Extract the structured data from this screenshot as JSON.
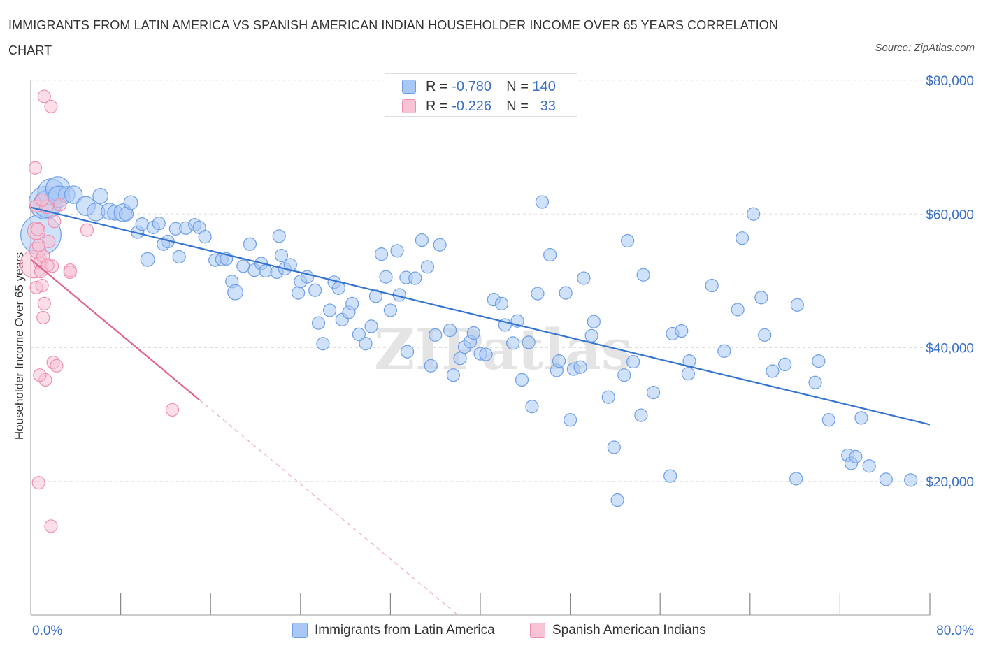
{
  "title": "IMMIGRANTS FROM LATIN AMERICA VS SPANISH AMERICAN INDIAN HOUSEHOLDER INCOME OVER 65 YEARS CORRELATION CHART",
  "source": "Source: ZipAtlas.com",
  "watermark": "ZIPatlas",
  "legend": {
    "rows": [
      {
        "r_label": "R =",
        "r_value": "-0.780",
        "n_label": "N =",
        "n_value": "140"
      },
      {
        "r_label": "R =",
        "r_value": "-0.226",
        "n_label": "N =",
        "n_value": "33"
      }
    ]
  },
  "colors": {
    "blue": "#6d9ee6",
    "blue_fill": "#aac8f5",
    "blue_line": "#3575d0",
    "pink": "#ee8fb0",
    "pink_fill": "#f8c3d5",
    "pink_line": "#e0608f",
    "tick_label": "#3a6fc6"
  },
  "chart_data": {
    "type": "scatter",
    "ylabel": "Householder Income Over 65 years",
    "xlabel": "",
    "xlim": [
      0,
      80
    ],
    "ylim": [
      0,
      80000
    ],
    "x_tick_labels": [
      "0.0%",
      "80.0%"
    ],
    "y_ticks": [
      20000,
      40000,
      60000,
      80000
    ],
    "y_tick_labels": [
      "$20,000",
      "$40,000",
      "$60,000",
      "$80,000"
    ],
    "grid": true,
    "legend_position": "top-center",
    "series": [
      {
        "name": "Immigrants from Latin America",
        "color": "#6d9ee6",
        "trend": {
          "x1": 0,
          "y1": 61000,
          "x2": 80,
          "y2": 28500
        },
        "points": [
          [
            0.9,
            56900,
            3.2
          ],
          [
            1.3,
            61700,
            2.6
          ],
          [
            1.5,
            61500,
            2.2
          ],
          [
            1.8,
            63300,
            2.1
          ],
          [
            2.4,
            63800,
            1.9
          ],
          [
            2.5,
            62600,
            1.7
          ],
          [
            3.2,
            62900,
            1.3
          ],
          [
            3.8,
            62900,
            1.4
          ],
          [
            4.9,
            61200,
            1.5
          ],
          [
            6.2,
            62700,
            1.2
          ],
          [
            5.8,
            60300,
            1.4
          ],
          [
            7.0,
            60400,
            1.3
          ],
          [
            7.5,
            60200,
            1.2
          ],
          [
            8.2,
            60200,
            1.4
          ],
          [
            8.5,
            60000,
            1.1
          ],
          [
            8.9,
            61700,
            1.1
          ],
          [
            9.5,
            57300,
            1.0
          ],
          [
            9.9,
            58500,
            1.0
          ],
          [
            10.4,
            53200,
            1.1
          ],
          [
            10.9,
            58000,
            1.0
          ],
          [
            11.4,
            58600,
            1.0
          ],
          [
            11.8,
            55500,
            1.0
          ],
          [
            12.2,
            55900,
            1.0
          ],
          [
            12.9,
            57800,
            1.0
          ],
          [
            13.2,
            53600,
            1.0
          ],
          [
            13.8,
            57900,
            1.0
          ],
          [
            14.6,
            58400,
            1.0
          ],
          [
            15.0,
            58000,
            1.0
          ],
          [
            15.5,
            56600,
            1.0
          ],
          [
            16.4,
            53100,
            1.0
          ],
          [
            17.0,
            53200,
            1.0
          ],
          [
            17.4,
            53300,
            1.0
          ],
          [
            17.9,
            49900,
            1.0
          ],
          [
            18.2,
            48300,
            1.2
          ],
          [
            18.9,
            52200,
            1.0
          ],
          [
            19.5,
            55500,
            1.0
          ],
          [
            19.9,
            51600,
            1.0
          ],
          [
            20.5,
            52600,
            1.0
          ],
          [
            20.9,
            51500,
            1.0
          ],
          [
            21.9,
            51300,
            1.0
          ],
          [
            22.1,
            56700,
            1.0
          ],
          [
            22.3,
            53800,
            1.0
          ],
          [
            22.6,
            51800,
            1.0
          ],
          [
            23.1,
            52400,
            1.0
          ],
          [
            23.8,
            48200,
            1.0
          ],
          [
            24.0,
            49900,
            1.0
          ],
          [
            24.6,
            50600,
            1.0
          ],
          [
            25.3,
            48600,
            1.0
          ],
          [
            25.6,
            43700,
            1.0
          ],
          [
            26.0,
            40600,
            1.0
          ],
          [
            26.6,
            45600,
            1.0
          ],
          [
            27.0,
            49800,
            1.0
          ],
          [
            27.4,
            48900,
            1.0
          ],
          [
            27.7,
            44200,
            1.0
          ],
          [
            28.3,
            45300,
            1.0
          ],
          [
            28.6,
            46600,
            1.0
          ],
          [
            29.2,
            42000,
            1.0
          ],
          [
            29.8,
            40600,
            1.0
          ],
          [
            30.3,
            43200,
            1.0
          ],
          [
            30.7,
            47700,
            1.0
          ],
          [
            31.2,
            54000,
            1.0
          ],
          [
            31.6,
            50600,
            1.0
          ],
          [
            32.0,
            45600,
            1.0
          ],
          [
            32.6,
            54500,
            1.0
          ],
          [
            32.8,
            47900,
            1.0
          ],
          [
            33.4,
            50500,
            1.0
          ],
          [
            33.5,
            39400,
            1.0
          ],
          [
            34.2,
            50400,
            1.0
          ],
          [
            34.8,
            56100,
            1.0
          ],
          [
            35.3,
            52100,
            1.0
          ],
          [
            35.6,
            37300,
            1.0
          ],
          [
            36.0,
            41900,
            1.0
          ],
          [
            36.4,
            55400,
            1.0
          ],
          [
            37.3,
            42600,
            1.0
          ],
          [
            37.6,
            35900,
            1.0
          ],
          [
            38.2,
            38400,
            1.0
          ],
          [
            38.6,
            40100,
            1.0
          ],
          [
            39.1,
            40900,
            1.0
          ],
          [
            39.4,
            42200,
            1.0
          ],
          [
            40.0,
            39100,
            1.0
          ],
          [
            40.5,
            39000,
            1.0
          ],
          [
            41.2,
            47200,
            1.0
          ],
          [
            41.9,
            46600,
            1.0
          ],
          [
            42.2,
            43400,
            1.0
          ],
          [
            42.9,
            40700,
            1.0
          ],
          [
            43.3,
            44000,
            1.0
          ],
          [
            43.7,
            35200,
            1.0
          ],
          [
            44.3,
            40800,
            1.0
          ],
          [
            44.6,
            31200,
            1.0
          ],
          [
            45.1,
            48100,
            1.0
          ],
          [
            45.5,
            61800,
            1.0
          ],
          [
            46.2,
            53900,
            1.0
          ],
          [
            46.8,
            36600,
            1.0
          ],
          [
            47.0,
            38000,
            1.0
          ],
          [
            47.6,
            48200,
            1.0
          ],
          [
            48.0,
            29200,
            1.0
          ],
          [
            48.3,
            36800,
            1.0
          ],
          [
            48.9,
            37100,
            1.0
          ],
          [
            49.2,
            50400,
            1.0
          ],
          [
            49.9,
            41800,
            1.0
          ],
          [
            50.1,
            43900,
            1.0
          ],
          [
            51.4,
            32600,
            1.0
          ],
          [
            51.9,
            25100,
            1.0
          ],
          [
            52.2,
            17200,
            1.0
          ],
          [
            52.8,
            35900,
            1.0
          ],
          [
            53.1,
            56000,
            1.0
          ],
          [
            53.6,
            37900,
            1.0
          ],
          [
            54.3,
            29900,
            1.0
          ],
          [
            54.5,
            50900,
            1.0
          ],
          [
            55.4,
            33300,
            1.0
          ],
          [
            56.9,
            20800,
            1.0
          ],
          [
            57.1,
            42100,
            1.0
          ],
          [
            57.9,
            42500,
            1.0
          ],
          [
            58.5,
            36100,
            1.0
          ],
          [
            58.6,
            38000,
            1.0
          ],
          [
            60.6,
            49300,
            1.0
          ],
          [
            61.7,
            39500,
            1.0
          ],
          [
            62.9,
            45700,
            1.0
          ],
          [
            63.3,
            56400,
            1.0
          ],
          [
            64.3,
            60000,
            1.0
          ],
          [
            65.0,
            47500,
            1.0
          ],
          [
            65.3,
            41900,
            1.0
          ],
          [
            66.0,
            36500,
            1.0
          ],
          [
            67.1,
            37500,
            1.0
          ],
          [
            68.2,
            46400,
            1.0
          ],
          [
            68.1,
            20400,
            1.0
          ],
          [
            69.8,
            34800,
            1.0
          ],
          [
            70.1,
            38000,
            1.0
          ],
          [
            71.0,
            29200,
            1.0
          ],
          [
            72.7,
            23900,
            1.0
          ],
          [
            73.0,
            22700,
            1.0
          ],
          [
            73.4,
            23700,
            1.0
          ],
          [
            73.9,
            29500,
            1.0
          ],
          [
            74.6,
            22300,
            1.0
          ],
          [
            76.1,
            20300,
            1.0
          ],
          [
            78.3,
            20200,
            1.0
          ]
        ]
      },
      {
        "name": "Spanish American Indians",
        "color": "#ee8fb0",
        "trend": {
          "x1": 0,
          "y1": 53200,
          "x2": 15,
          "y2": 32200,
          "dash_x2": 38,
          "dash_y2": 0
        },
        "points": [
          [
            0.3,
            52500,
            2.2
          ],
          [
            0.5,
            57500,
            1.4
          ],
          [
            0.6,
            54600,
            1.3
          ],
          [
            0.5,
            61200,
            1.0
          ],
          [
            0.5,
            49000,
            1.0
          ],
          [
            0.8,
            52700,
            1.0
          ],
          [
            0.9,
            51400,
            1.0
          ],
          [
            1.0,
            49300,
            1.0
          ],
          [
            1.1,
            53700,
            1.0
          ],
          [
            1.2,
            46600,
            1.0
          ],
          [
            1.1,
            44500,
            1.0
          ],
          [
            1.3,
            35200,
            1.0
          ],
          [
            1.4,
            61100,
            1.1
          ],
          [
            1.6,
            55900,
            1.0
          ],
          [
            1.9,
            52200,
            1.0
          ],
          [
            2.0,
            37800,
            1.0
          ],
          [
            2.3,
            37300,
            1.0
          ],
          [
            2.1,
            58900,
            1.0
          ],
          [
            0.8,
            35900,
            1.0
          ],
          [
            0.7,
            19800,
            1.0
          ],
          [
            0.4,
            66900,
            1.0
          ],
          [
            1.2,
            77600,
            1.0
          ],
          [
            1.8,
            76100,
            1.0
          ],
          [
            1.8,
            13300,
            1.0
          ],
          [
            3.5,
            51600,
            1.0
          ],
          [
            3.5,
            51300,
            1.0
          ],
          [
            5.0,
            57600,
            1.0
          ],
          [
            12.6,
            30700,
            1.0
          ],
          [
            1.0,
            62100,
            1.0
          ],
          [
            0.6,
            57700,
            1.0
          ],
          [
            0.7,
            55300,
            1.0
          ],
          [
            2.6,
            61400,
            1.0
          ],
          [
            1.5,
            52300,
            1.0
          ]
        ]
      }
    ]
  },
  "bottom_legend": [
    "Immigrants from Latin America",
    "Spanish American Indians"
  ]
}
